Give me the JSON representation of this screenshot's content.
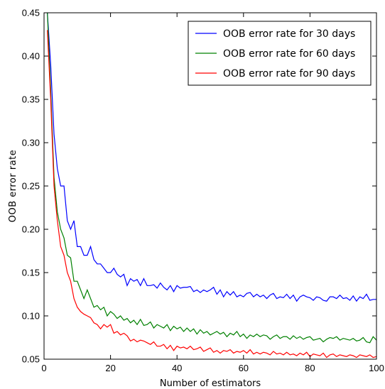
{
  "chart_data": {
    "type": "line",
    "title": "",
    "xlabel": "Number of estimators",
    "ylabel": "OOB error rate",
    "xlim": [
      0,
      100
    ],
    "ylim": [
      0.05,
      0.45
    ],
    "xticks": [
      "0",
      "20",
      "40",
      "60",
      "80",
      "100"
    ],
    "yticks": [
      "0.05",
      "0.10",
      "0.15",
      "0.20",
      "0.25",
      "0.30",
      "0.35",
      "0.40",
      "0.45"
    ],
    "grid": false,
    "legend_position": "top-right",
    "x": [
      1,
      2,
      3,
      4,
      5,
      6,
      7,
      8,
      9,
      10,
      11,
      12,
      13,
      14,
      15,
      16,
      17,
      18,
      19,
      20,
      21,
      22,
      23,
      24,
      25,
      26,
      27,
      28,
      29,
      30,
      31,
      32,
      33,
      34,
      35,
      36,
      37,
      38,
      39,
      40,
      41,
      42,
      43,
      44,
      45,
      46,
      47,
      48,
      49,
      50,
      51,
      52,
      53,
      54,
      55,
      56,
      57,
      58,
      59,
      60,
      61,
      62,
      63,
      64,
      65,
      66,
      67,
      68,
      69,
      70,
      71,
      72,
      73,
      74,
      75,
      76,
      77,
      78,
      79,
      80,
      81,
      82,
      83,
      84,
      85,
      86,
      87,
      88,
      89,
      90,
      91,
      92,
      93,
      94,
      95,
      96,
      97,
      98,
      99,
      100
    ],
    "series": [
      {
        "name": "OOB error rate for 30 days",
        "color": "#0000ff",
        "values": [
          0.45,
          0.39,
          0.31,
          0.27,
          0.25,
          0.25,
          0.21,
          0.2,
          0.21,
          0.18,
          0.18,
          0.17,
          0.17,
          0.18,
          0.165,
          0.16,
          0.16,
          0.155,
          0.15,
          0.15,
          0.155,
          0.148,
          0.145,
          0.148,
          0.135,
          0.143,
          0.14,
          0.142,
          0.135,
          0.143,
          0.135,
          0.135,
          0.136,
          0.132,
          0.138,
          0.133,
          0.13,
          0.135,
          0.128,
          0.135,
          0.132,
          0.133,
          0.133,
          0.134,
          0.128,
          0.13,
          0.127,
          0.13,
          0.128,
          0.13,
          0.133,
          0.125,
          0.13,
          0.122,
          0.128,
          0.124,
          0.128,
          0.122,
          0.124,
          0.122,
          0.126,
          0.127,
          0.122,
          0.125,
          0.122,
          0.124,
          0.12,
          0.124,
          0.126,
          0.12,
          0.122,
          0.121,
          0.125,
          0.12,
          0.124,
          0.117,
          0.122,
          0.124,
          0.122,
          0.121,
          0.118,
          0.122,
          0.121,
          0.118,
          0.117,
          0.122,
          0.122,
          0.12,
          0.124,
          0.12,
          0.121,
          0.118,
          0.123,
          0.117,
          0.122,
          0.12,
          0.125,
          0.118,
          0.119,
          0.119
        ]
      },
      {
        "name": "OOB error rate for 60 days",
        "color": "#008000",
        "values": [
          0.45,
          0.36,
          0.26,
          0.22,
          0.2,
          0.19,
          0.17,
          0.167,
          0.14,
          0.14,
          0.13,
          0.12,
          0.13,
          0.12,
          0.11,
          0.112,
          0.107,
          0.11,
          0.1,
          0.105,
          0.102,
          0.097,
          0.1,
          0.095,
          0.097,
          0.092,
          0.095,
          0.09,
          0.096,
          0.089,
          0.09,
          0.093,
          0.086,
          0.09,
          0.088,
          0.086,
          0.09,
          0.083,
          0.088,
          0.085,
          0.087,
          0.082,
          0.086,
          0.082,
          0.085,
          0.079,
          0.084,
          0.08,
          0.082,
          0.078,
          0.08,
          0.082,
          0.079,
          0.081,
          0.076,
          0.08,
          0.078,
          0.082,
          0.076,
          0.079,
          0.074,
          0.078,
          0.076,
          0.079,
          0.076,
          0.078,
          0.077,
          0.073,
          0.076,
          0.078,
          0.074,
          0.076,
          0.076,
          0.073,
          0.077,
          0.074,
          0.076,
          0.073,
          0.075,
          0.076,
          0.072,
          0.073,
          0.074,
          0.07,
          0.073,
          0.075,
          0.074,
          0.076,
          0.072,
          0.074,
          0.073,
          0.072,
          0.074,
          0.071,
          0.072,
          0.075,
          0.07,
          0.069,
          0.076,
          0.072
        ]
      },
      {
        "name": "OOB error rate for 90 days",
        "color": "#ff0000",
        "values": [
          0.43,
          0.35,
          0.25,
          0.21,
          0.18,
          0.17,
          0.15,
          0.14,
          0.12,
          0.11,
          0.105,
          0.102,
          0.1,
          0.098,
          0.092,
          0.09,
          0.085,
          0.09,
          0.087,
          0.09,
          0.08,
          0.082,
          0.078,
          0.08,
          0.077,
          0.071,
          0.073,
          0.07,
          0.072,
          0.071,
          0.069,
          0.067,
          0.07,
          0.065,
          0.065,
          0.067,
          0.062,
          0.066,
          0.06,
          0.065,
          0.063,
          0.064,
          0.062,
          0.065,
          0.061,
          0.062,
          0.064,
          0.059,
          0.061,
          0.063,
          0.058,
          0.06,
          0.057,
          0.06,
          0.059,
          0.061,
          0.057,
          0.059,
          0.058,
          0.06,
          0.057,
          0.061,
          0.056,
          0.058,
          0.056,
          0.058,
          0.057,
          0.055,
          0.059,
          0.056,
          0.057,
          0.055,
          0.058,
          0.055,
          0.056,
          0.054,
          0.057,
          0.055,
          0.058,
          0.053,
          0.056,
          0.055,
          0.054,
          0.057,
          0.052,
          0.055,
          0.056,
          0.053,
          0.055,
          0.054,
          0.053,
          0.055,
          0.054,
          0.052,
          0.055,
          0.054,
          0.053,
          0.055,
          0.052,
          0.053
        ]
      }
    ]
  }
}
